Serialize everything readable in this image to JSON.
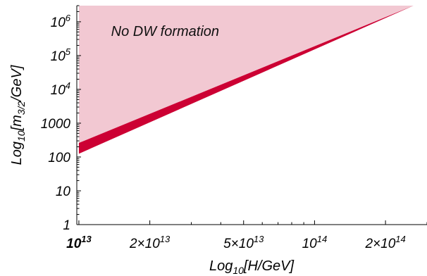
{
  "chart_data": {
    "type": "area",
    "xscale": "log",
    "yscale": "log",
    "xlim": [
      9800000000000.0,
      300000000000000.0
    ],
    "ylim": [
      1,
      3000000.0
    ],
    "xlabel": {
      "pre": "Log",
      "sub": "10",
      "post": "[H/GeV]"
    },
    "ylabel": {
      "pre": "Log",
      "sub": "10",
      "mid": "[m",
      "sub2": "3/2",
      "post": "/GeV]"
    },
    "xticks": [
      {
        "value": 10000000000000.0,
        "coef": "",
        "base": "10",
        "exp": "13"
      },
      {
        "value": 20000000000000.0,
        "coef": "2×",
        "base": "10",
        "exp": "13"
      },
      {
        "value": 50000000000000.0,
        "coef": "5×",
        "base": "10",
        "exp": "13"
      },
      {
        "value": 100000000000000.0,
        "coef": "",
        "base": "10",
        "exp": "14"
      },
      {
        "value": 200000000000000.0,
        "coef": "2×",
        "base": "10",
        "exp": "14"
      }
    ],
    "yticks": [
      {
        "value": 1,
        "label": "1"
      },
      {
        "value": 10,
        "label": "10"
      },
      {
        "value": 100,
        "label": "100"
      },
      {
        "value": 1000,
        "label": "1000"
      },
      {
        "value": 10000,
        "base": "10",
        "exp": "4"
      },
      {
        "value": 100000,
        "base": "10",
        "exp": "5"
      },
      {
        "value": 1000000,
        "base": "10",
        "exp": "6"
      }
    ],
    "series": [
      {
        "kind": "band",
        "color": "#cc0033",
        "x": [
          10000000000000.0,
          263000000000000.0
        ],
        "y_lower": [
          125,
          3000000.0
        ],
        "y_upper": [
          260,
          3000000.0
        ]
      },
      {
        "kind": "region_above",
        "color": "#f2c8d2",
        "x": [
          10000000000000.0,
          263000000000000.0
        ],
        "y_boundary": [
          260,
          3000000.0
        ]
      }
    ],
    "annotations": [
      {
        "text": "No DW formation",
        "x": 13700000000000.0,
        "y": 380000.0
      }
    ],
    "colors": {
      "axis": "#000000",
      "band": "#cc0033",
      "region": "#f2c8d2"
    }
  }
}
